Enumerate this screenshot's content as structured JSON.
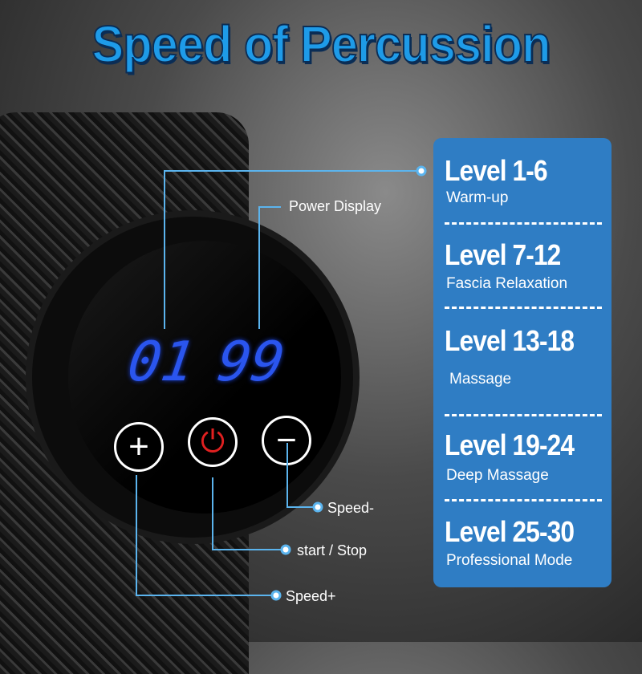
{
  "title": "Speed of Percussion",
  "display": {
    "left_digits": "01",
    "right_digits": "99",
    "label": "Power Display"
  },
  "buttons": {
    "plus": "+",
    "power": "⏻",
    "minus": "−"
  },
  "callouts": {
    "speed_minus": "Speed-",
    "start_stop": "start / Stop",
    "speed_plus": "Speed+"
  },
  "levels": [
    {
      "title": "Level 1-6",
      "desc": "Warm-up"
    },
    {
      "title": "Level 7-12",
      "desc": "Fascia Relaxation"
    },
    {
      "title": "Level 13-18",
      "desc": "Massage"
    },
    {
      "title": "Level 19-24",
      "desc": "Deep Massage"
    },
    {
      "title": "Level 25-30",
      "desc": "Professional Mode"
    }
  ],
  "colors": {
    "panel": "#2f7dc4",
    "title": "#1e9be8",
    "digits": "#2a55ee",
    "connector": "#5bb4ee",
    "power_icon": "#e02020"
  }
}
